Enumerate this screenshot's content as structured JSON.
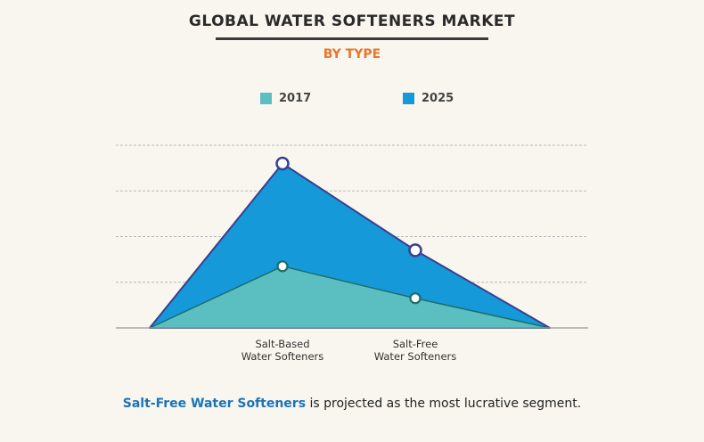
{
  "title": "GLOBAL WATER SOFTENERS MARKET",
  "subtitle": "BY TYPE",
  "footer": {
    "highlight": "Salt-Free Water Softeners",
    "text": " is projected as the most lucrative segment."
  },
  "colors": {
    "s2017": "#5bbfc1",
    "s2025": "#1599d9",
    "outline2025": "#3a3f8f",
    "outline2017": "#1d6d6b",
    "title": "#2a2a2a",
    "subtitle": "#e8762b",
    "highlight": "#1b74b8"
  },
  "chart_data": {
    "type": "area",
    "categories": [
      "Salt-Based\nWater Softeners",
      "Salt-Free\nWater Softeners"
    ],
    "series": [
      {
        "name": "2017",
        "values": [
          1.35,
          0.65
        ]
      },
      {
        "name": "2025",
        "values": [
          3.6,
          1.7
        ]
      }
    ],
    "ylim": [
      0,
      4
    ],
    "grid": true,
    "legend": "top",
    "xlabel": "",
    "ylabel": ""
  }
}
